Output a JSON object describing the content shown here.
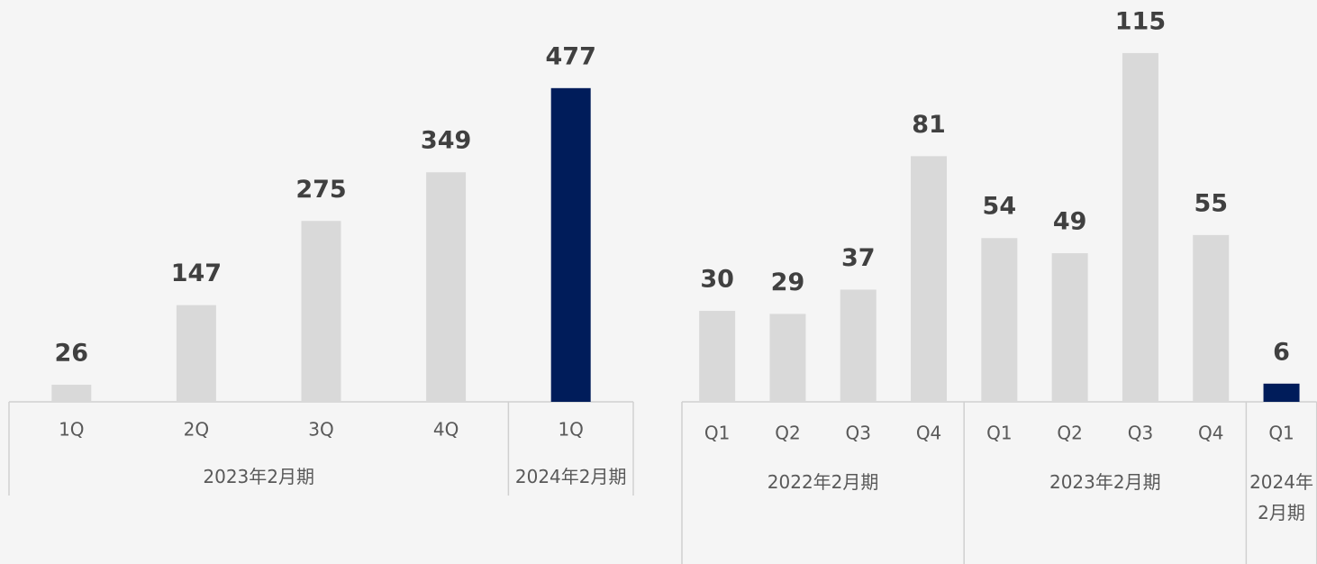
{
  "chart_data": [
    {
      "type": "bar",
      "categories": [
        "1Q",
        "2Q",
        "3Q",
        "4Q",
        "1Q"
      ],
      "groups": [
        {
          "label": "2023年2月期",
          "span": 4
        },
        {
          "label": "2024年2月期",
          "span": 1
        }
      ],
      "values": [
        26,
        147,
        275,
        349,
        477
      ],
      "colors": [
        "#d9d9d9",
        "#d9d9d9",
        "#d9d9d9",
        "#d9d9d9",
        "#001c5a"
      ],
      "ylim": [
        0,
        611
      ]
    },
    {
      "type": "bar",
      "categories": [
        "Q1",
        "Q2",
        "Q3",
        "Q4",
        "Q1",
        "Q2",
        "Q3",
        "Q4",
        "Q1"
      ],
      "groups": [
        {
          "label": "2022年2月期",
          "span": 4
        },
        {
          "label": "2023年2月期",
          "span": 4
        },
        {
          "label": "2024年2月期",
          "span": 1
        }
      ],
      "values": [
        30,
        29,
        37,
        81,
        54,
        49,
        115,
        55,
        6
      ],
      "colors": [
        "#d9d9d9",
        "#d9d9d9",
        "#d9d9d9",
        "#d9d9d9",
        "#d9d9d9",
        "#d9d9d9",
        "#d9d9d9",
        "#d9d9d9",
        "#001c5a"
      ],
      "ylim": [
        0,
        132.5
      ]
    }
  ]
}
